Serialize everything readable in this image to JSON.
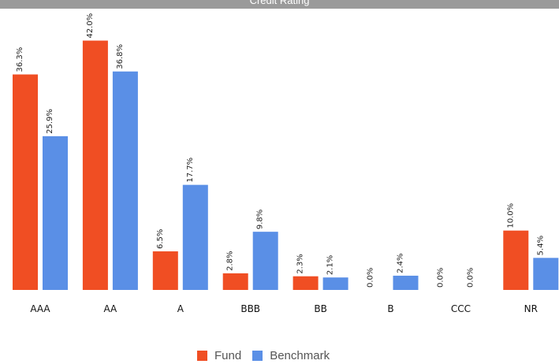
{
  "header": {
    "title": "Credit Rating"
  },
  "colors": {
    "fund": "#f04e23",
    "benchmark": "#5a8fe6"
  },
  "chart_data": {
    "type": "bar",
    "categories": [
      "AAA",
      "AA",
      "A",
      "BBB",
      "BB",
      "B",
      "CCC",
      "NR"
    ],
    "series": [
      {
        "name": "Fund",
        "values": [
          36.3,
          42.0,
          6.5,
          2.8,
          2.3,
          0.0,
          0.0,
          10.0
        ],
        "labels": [
          "36.3%",
          "42.0%",
          "6.5%",
          "2.8%",
          "2.3%",
          "0.0%",
          "0.0%",
          "10.0%"
        ]
      },
      {
        "name": "Benchmark",
        "values": [
          25.9,
          36.8,
          17.7,
          9.8,
          2.1,
          2.4,
          0.0,
          5.4
        ],
        "labels": [
          "25.9%",
          "36.8%",
          "17.7%",
          "9.8%",
          "2.1%",
          "2.4%",
          "0.0%",
          "5.4%"
        ]
      }
    ],
    "ylim": [
      0,
      43
    ],
    "grid": false,
    "legend_position": "bottom"
  }
}
